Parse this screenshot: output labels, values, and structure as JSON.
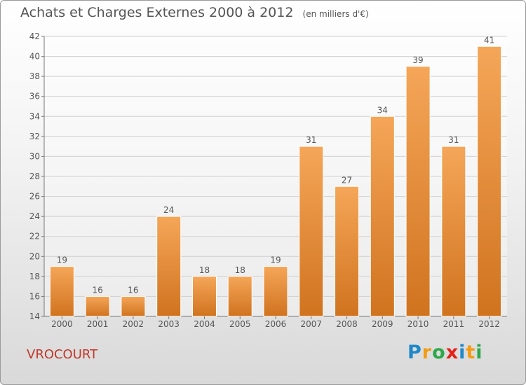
{
  "title": "Achats et Charges Externes 2000 à 2012",
  "subtitle": "(en milliers d'€)",
  "commune": "VROCOURT",
  "logo": {
    "text": "Proxiti",
    "letter_colors": [
      "#1e88c8",
      "#f39c12",
      "#2ea84a",
      "#e2231a",
      "#1e88c8",
      "#f39c12",
      "#2ea84a"
    ]
  },
  "colors": {
    "bar_top": "#f5a658",
    "bar_bottom": "#d0731f",
    "grid": "#cfcfcf",
    "text": "#555555"
  },
  "chart_data": {
    "type": "bar",
    "title": "Achats et Charges Externes 2000 à 2012",
    "subtitle": "(en milliers d'€)",
    "categories": [
      "2000",
      "2001",
      "2002",
      "2003",
      "2004",
      "2005",
      "2006",
      "2007",
      "2008",
      "2009",
      "2010",
      "2011",
      "2012"
    ],
    "values": [
      19,
      16,
      16,
      24,
      18,
      18,
      19,
      31,
      27,
      34,
      39,
      31,
      41
    ],
    "ylim": [
      14,
      42
    ],
    "yticks": [
      14,
      16,
      18,
      20,
      22,
      24,
      26,
      28,
      30,
      32,
      34,
      36,
      38,
      40,
      42
    ],
    "grid": true,
    "data_labels": true
  }
}
